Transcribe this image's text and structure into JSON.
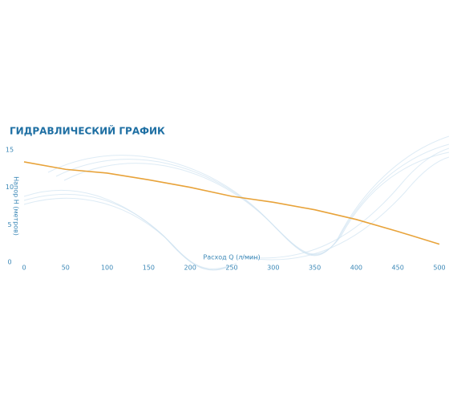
{
  "chart_data": {
    "type": "line",
    "title": "ГИДРАВЛИЧЕСКИЙ ГРАФИК",
    "xlabel": "Расход Q (л/мин)",
    "ylabel": "Напор H (метров)",
    "x": [
      0,
      50,
      100,
      150,
      200,
      250,
      300,
      350,
      400,
      450,
      500
    ],
    "series": [
      {
        "name": null,
        "color": "#e8a33a",
        "values": [
          13.4,
          12.4,
          11.9,
          11.0,
          10.0,
          8.8,
          8.0,
          7.0,
          5.7,
          4.1,
          2.4
        ]
      }
    ],
    "xlim": [
      0,
      500
    ],
    "ylim": [
      0,
      15
    ],
    "xticks": [
      0,
      50,
      100,
      150,
      200,
      250,
      300,
      350,
      400,
      450,
      500
    ],
    "yticks": [
      0,
      5,
      10,
      15
    ],
    "grid": false
  }
}
